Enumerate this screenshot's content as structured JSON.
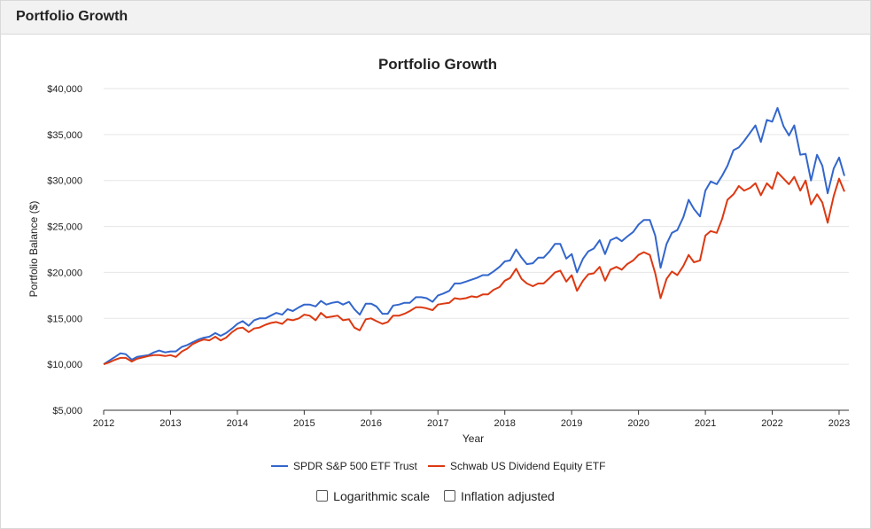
{
  "panel": {
    "title": "Portfolio Growth"
  },
  "options": {
    "log_scale_label": "Logarithmic scale",
    "log_scale_checked": false,
    "inflation_label": "Inflation adjusted",
    "inflation_checked": false
  },
  "chart_data": {
    "type": "line",
    "title": "Portfolio Growth",
    "xlabel": "Year",
    "ylabel": "Portfolio Balance ($)",
    "xlim": [
      2012,
      2023.08
    ],
    "ylim": [
      5000,
      40000
    ],
    "x_ticks": [
      "2012",
      "2013",
      "2014",
      "2015",
      "2016",
      "2017",
      "2018",
      "2019",
      "2020",
      "2021",
      "2022",
      "2023"
    ],
    "y_ticks": [
      "$5,000",
      "$10,000",
      "$15,000",
      "$20,000",
      "$25,000",
      "$30,000",
      "$35,000",
      "$40,000"
    ],
    "grid": true,
    "legend": "bottom",
    "series": [
      {
        "name": "SPDR S&P 500 ETF Trust",
        "color": "#3366cc",
        "points": [
          [
            2012.0,
            10000
          ],
          [
            2012.17,
            10800
          ],
          [
            2012.25,
            11200
          ],
          [
            2012.33,
            11100
          ],
          [
            2012.42,
            10500
          ],
          [
            2012.5,
            10800
          ],
          [
            2012.67,
            11000
          ],
          [
            2012.75,
            11300
          ],
          [
            2012.83,
            11500
          ],
          [
            2012.92,
            11300
          ],
          [
            2013.0,
            11400
          ],
          [
            2013.08,
            11400
          ],
          [
            2013.17,
            11900
          ],
          [
            2013.25,
            12100
          ],
          [
            2013.33,
            12400
          ],
          [
            2013.42,
            12700
          ],
          [
            2013.5,
            12900
          ],
          [
            2013.58,
            13000
          ],
          [
            2013.67,
            13400
          ],
          [
            2013.75,
            13100
          ],
          [
            2013.83,
            13400
          ],
          [
            2013.92,
            13900
          ],
          [
            2014.0,
            14400
          ],
          [
            2014.08,
            14700
          ],
          [
            2014.17,
            14200
          ],
          [
            2014.25,
            14800
          ],
          [
            2014.33,
            15000
          ],
          [
            2014.42,
            15000
          ],
          [
            2014.5,
            15300
          ],
          [
            2014.58,
            15600
          ],
          [
            2014.67,
            15400
          ],
          [
            2014.75,
            16000
          ],
          [
            2014.83,
            15800
          ],
          [
            2014.92,
            16200
          ],
          [
            2015.0,
            16500
          ],
          [
            2015.08,
            16500
          ],
          [
            2015.17,
            16300
          ],
          [
            2015.25,
            16900
          ],
          [
            2015.33,
            16500
          ],
          [
            2015.42,
            16700
          ],
          [
            2015.5,
            16800
          ],
          [
            2015.58,
            16500
          ],
          [
            2015.67,
            16800
          ],
          [
            2015.75,
            16000
          ],
          [
            2015.83,
            15400
          ],
          [
            2015.92,
            16600
          ],
          [
            2016.0,
            16600
          ],
          [
            2016.08,
            16300
          ],
          [
            2016.17,
            15500
          ],
          [
            2016.25,
            15500
          ],
          [
            2016.33,
            16400
          ],
          [
            2016.42,
            16500
          ],
          [
            2016.5,
            16700
          ],
          [
            2016.58,
            16700
          ],
          [
            2016.67,
            17300
          ],
          [
            2016.75,
            17300
          ],
          [
            2016.83,
            17200
          ],
          [
            2016.92,
            16800
          ],
          [
            2017.0,
            17500
          ],
          [
            2017.08,
            17700
          ],
          [
            2017.17,
            18000
          ],
          [
            2017.25,
            18800
          ],
          [
            2017.33,
            18800
          ],
          [
            2017.42,
            19000
          ],
          [
            2017.5,
            19200
          ],
          [
            2017.58,
            19400
          ],
          [
            2017.67,
            19700
          ],
          [
            2017.75,
            19700
          ],
          [
            2017.83,
            20100
          ],
          [
            2017.92,
            20600
          ],
          [
            2018.0,
            21200
          ],
          [
            2018.08,
            21300
          ],
          [
            2018.17,
            22500
          ],
          [
            2018.25,
            21600
          ],
          [
            2018.33,
            20900
          ],
          [
            2018.42,
            21000
          ],
          [
            2018.5,
            21600
          ],
          [
            2018.58,
            21600
          ],
          [
            2018.67,
            22300
          ],
          [
            2018.75,
            23100
          ],
          [
            2018.83,
            23100
          ],
          [
            2018.92,
            21500
          ],
          [
            2019.0,
            22000
          ],
          [
            2019.08,
            20000
          ],
          [
            2019.17,
            21500
          ],
          [
            2019.25,
            22300
          ],
          [
            2019.33,
            22600
          ],
          [
            2019.42,
            23500
          ],
          [
            2019.5,
            22000
          ],
          [
            2019.58,
            23500
          ],
          [
            2019.67,
            23800
          ],
          [
            2019.75,
            23400
          ],
          [
            2019.83,
            23900
          ],
          [
            2019.92,
            24400
          ],
          [
            2020.0,
            25200
          ],
          [
            2020.08,
            25700
          ],
          [
            2020.17,
            25700
          ],
          [
            2020.25,
            24000
          ],
          [
            2020.33,
            20500
          ],
          [
            2020.42,
            23100
          ],
          [
            2020.5,
            24300
          ],
          [
            2020.58,
            24600
          ],
          [
            2020.67,
            26000
          ],
          [
            2020.75,
            27900
          ],
          [
            2020.83,
            26900
          ],
          [
            2020.92,
            26100
          ],
          [
            2021.0,
            28900
          ],
          [
            2021.08,
            29900
          ],
          [
            2021.17,
            29600
          ],
          [
            2021.25,
            30500
          ],
          [
            2021.33,
            31600
          ],
          [
            2021.42,
            33300
          ],
          [
            2021.5,
            33600
          ],
          [
            2021.58,
            34300
          ],
          [
            2021.67,
            35200
          ],
          [
            2021.75,
            36000
          ],
          [
            2021.83,
            34200
          ],
          [
            2021.92,
            36600
          ],
          [
            2022.0,
            36400
          ],
          [
            2022.08,
            37900
          ],
          [
            2022.17,
            35900
          ],
          [
            2022.25,
            34900
          ],
          [
            2022.33,
            36000
          ],
          [
            2022.42,
            32800
          ],
          [
            2022.5,
            32900
          ],
          [
            2022.58,
            30000
          ],
          [
            2022.67,
            32800
          ],
          [
            2022.75,
            31600
          ],
          [
            2022.83,
            28600
          ],
          [
            2022.92,
            31300
          ],
          [
            2023.0,
            32500
          ],
          [
            2023.08,
            30500
          ]
        ]
      },
      {
        "name": "Schwab US Dividend Equity ETF",
        "color": "#dc3912",
        "points": [
          [
            2012.0,
            10000
          ],
          [
            2012.08,
            10200
          ],
          [
            2012.17,
            10500
          ],
          [
            2012.25,
            10700
          ],
          [
            2012.33,
            10700
          ],
          [
            2012.42,
            10300
          ],
          [
            2012.5,
            10600
          ],
          [
            2012.67,
            10900
          ],
          [
            2012.75,
            11000
          ],
          [
            2012.83,
            11000
          ],
          [
            2012.92,
            10900
          ],
          [
            2013.0,
            11000
          ],
          [
            2013.08,
            10800
          ],
          [
            2013.17,
            11400
          ],
          [
            2013.25,
            11700
          ],
          [
            2013.33,
            12200
          ],
          [
            2013.42,
            12500
          ],
          [
            2013.5,
            12700
          ],
          [
            2013.58,
            12600
          ],
          [
            2013.67,
            13000
          ],
          [
            2013.75,
            12600
          ],
          [
            2013.83,
            12900
          ],
          [
            2013.92,
            13500
          ],
          [
            2014.0,
            13900
          ],
          [
            2014.08,
            14000
          ],
          [
            2014.17,
            13500
          ],
          [
            2014.25,
            13900
          ],
          [
            2014.33,
            14000
          ],
          [
            2014.42,
            14300
          ],
          [
            2014.5,
            14500
          ],
          [
            2014.58,
            14600
          ],
          [
            2014.67,
            14400
          ],
          [
            2014.75,
            14900
          ],
          [
            2014.83,
            14800
          ],
          [
            2014.92,
            15000
          ],
          [
            2015.0,
            15400
          ],
          [
            2015.08,
            15300
          ],
          [
            2015.17,
            14800
          ],
          [
            2015.25,
            15600
          ],
          [
            2015.33,
            15100
          ],
          [
            2015.42,
            15200
          ],
          [
            2015.5,
            15300
          ],
          [
            2015.58,
            14800
          ],
          [
            2015.67,
            14900
          ],
          [
            2015.75,
            14000
          ],
          [
            2015.83,
            13700
          ],
          [
            2015.92,
            14900
          ],
          [
            2016.0,
            15000
          ],
          [
            2016.08,
            14700
          ],
          [
            2016.17,
            14400
          ],
          [
            2016.25,
            14600
          ],
          [
            2016.33,
            15300
          ],
          [
            2016.42,
            15300
          ],
          [
            2016.5,
            15500
          ],
          [
            2016.58,
            15800
          ],
          [
            2016.67,
            16200
          ],
          [
            2016.75,
            16200
          ],
          [
            2016.83,
            16100
          ],
          [
            2016.92,
            15900
          ],
          [
            2017.0,
            16500
          ],
          [
            2017.08,
            16600
          ],
          [
            2017.17,
            16700
          ],
          [
            2017.25,
            17200
          ],
          [
            2017.33,
            17100
          ],
          [
            2017.42,
            17200
          ],
          [
            2017.5,
            17400
          ],
          [
            2017.58,
            17300
          ],
          [
            2017.67,
            17600
          ],
          [
            2017.75,
            17600
          ],
          [
            2017.83,
            18100
          ],
          [
            2017.92,
            18400
          ],
          [
            2018.0,
            19100
          ],
          [
            2018.08,
            19400
          ],
          [
            2018.17,
            20400
          ],
          [
            2018.25,
            19300
          ],
          [
            2018.33,
            18800
          ],
          [
            2018.42,
            18500
          ],
          [
            2018.5,
            18800
          ],
          [
            2018.58,
            18800
          ],
          [
            2018.67,
            19400
          ],
          [
            2018.75,
            20000
          ],
          [
            2018.83,
            20200
          ],
          [
            2018.92,
            19000
          ],
          [
            2019.0,
            19700
          ],
          [
            2019.08,
            18000
          ],
          [
            2019.17,
            19100
          ],
          [
            2019.25,
            19800
          ],
          [
            2019.33,
            19900
          ],
          [
            2019.42,
            20600
          ],
          [
            2019.5,
            19100
          ],
          [
            2019.58,
            20300
          ],
          [
            2019.67,
            20600
          ],
          [
            2019.75,
            20300
          ],
          [
            2019.83,
            20900
          ],
          [
            2019.92,
            21300
          ],
          [
            2020.0,
            21900
          ],
          [
            2020.08,
            22200
          ],
          [
            2020.17,
            21900
          ],
          [
            2020.25,
            19900
          ],
          [
            2020.33,
            17200
          ],
          [
            2020.42,
            19300
          ],
          [
            2020.5,
            20100
          ],
          [
            2020.58,
            19700
          ],
          [
            2020.67,
            20700
          ],
          [
            2020.75,
            21900
          ],
          [
            2020.83,
            21100
          ],
          [
            2020.92,
            21300
          ],
          [
            2021.0,
            24000
          ],
          [
            2021.08,
            24500
          ],
          [
            2021.17,
            24300
          ],
          [
            2021.25,
            25800
          ],
          [
            2021.33,
            27900
          ],
          [
            2021.42,
            28500
          ],
          [
            2021.5,
            29400
          ],
          [
            2021.58,
            28900
          ],
          [
            2021.67,
            29200
          ],
          [
            2021.75,
            29700
          ],
          [
            2021.83,
            28400
          ],
          [
            2021.92,
            29700
          ],
          [
            2022.0,
            29100
          ],
          [
            2022.08,
            30900
          ],
          [
            2022.17,
            30200
          ],
          [
            2022.25,
            29600
          ],
          [
            2022.33,
            30400
          ],
          [
            2022.42,
            28900
          ],
          [
            2022.5,
            30000
          ],
          [
            2022.58,
            27400
          ],
          [
            2022.67,
            28500
          ],
          [
            2022.75,
            27600
          ],
          [
            2022.83,
            25400
          ],
          [
            2022.92,
            28300
          ],
          [
            2023.0,
            30200
          ],
          [
            2023.08,
            28800
          ]
        ]
      }
    ]
  }
}
